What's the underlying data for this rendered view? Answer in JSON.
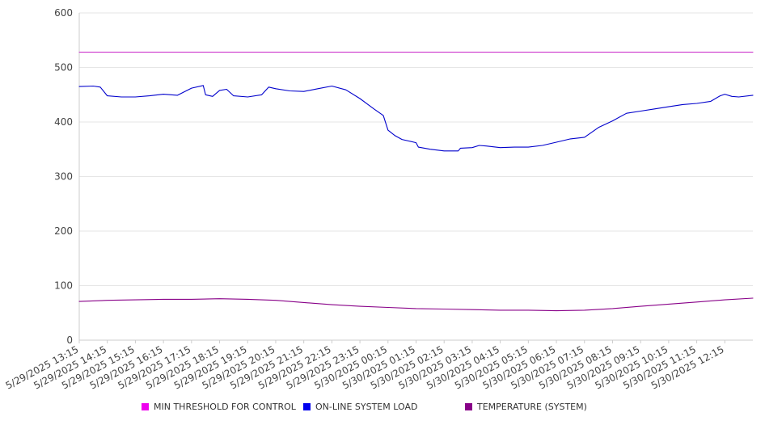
{
  "chart_data": {
    "type": "line",
    "title": "",
    "xlabel": "",
    "ylabel": "",
    "ylim": [
      0,
      600
    ],
    "yticks": [
      0,
      100,
      200,
      300,
      400,
      500,
      600
    ],
    "grid": "horizontal",
    "legend_position": "bottom",
    "x_tick_labels": [
      "5/29/2025 13:15",
      "5/29/2025 14:15",
      "5/29/2025 15:15",
      "5/29/2025 16:15",
      "5/29/2025 17:15",
      "5/29/2025 18:15",
      "5/29/2025 19:15",
      "5/29/2025 20:15",
      "5/29/2025 21:15",
      "5/29/2025 22:15",
      "5/29/2025 23:15",
      "5/30/2025 00:15",
      "5/30/2025 01:15",
      "5/30/2025 02:15",
      "5/30/2025 03:15",
      "5/30/2025 04:15",
      "5/30/2025 05:15",
      "5/30/2025 06:15",
      "5/30/2025 07:15",
      "5/30/2025 08:15",
      "5/30/2025 09:15",
      "5/30/2025 10:15",
      "5/30/2025 11:15",
      "5/30/2025 12:15"
    ],
    "x_start": "5/29/2025 13:15",
    "x_end": "5/30/2025 13:15",
    "series": [
      {
        "name": "MIN THRESHOLD FOR CONTROL",
        "color": "#cc33cc",
        "points": [
          [
            "5/29/2025 13:15",
            528
          ],
          [
            "5/30/2025 13:15",
            528
          ]
        ]
      },
      {
        "name": "ON-LINE SYSTEM LOAD",
        "color": "#0000cc",
        "points": [
          [
            "5/29/2025 13:15",
            465
          ],
          [
            "5/29/2025 13:45",
            466
          ],
          [
            "5/29/2025 14:00",
            464
          ],
          [
            "5/29/2025 14:15",
            448
          ],
          [
            "5/29/2025 14:45",
            446
          ],
          [
            "5/29/2025 15:15",
            446
          ],
          [
            "5/29/2025 15:45",
            448
          ],
          [
            "5/29/2025 16:15",
            451
          ],
          [
            "5/29/2025 16:45",
            449
          ],
          [
            "5/29/2025 17:15",
            462
          ],
          [
            "5/29/2025 17:40",
            467
          ],
          [
            "5/29/2025 17:45",
            450
          ],
          [
            "5/29/2025 18:00",
            447
          ],
          [
            "5/29/2025 18:15",
            458
          ],
          [
            "5/29/2025 18:30",
            460
          ],
          [
            "5/29/2025 18:45",
            448
          ],
          [
            "5/29/2025 19:15",
            446
          ],
          [
            "5/29/2025 19:45",
            450
          ],
          [
            "5/29/2025 20:00",
            464
          ],
          [
            "5/29/2025 20:15",
            461
          ],
          [
            "5/29/2025 20:45",
            457
          ],
          [
            "5/29/2025 21:15",
            456
          ],
          [
            "5/29/2025 21:45",
            461
          ],
          [
            "5/29/2025 22:15",
            466
          ],
          [
            "5/29/2025 22:45",
            459
          ],
          [
            "5/29/2025 23:15",
            443
          ],
          [
            "5/29/2025 23:45",
            424
          ],
          [
            "5/30/2025 00:05",
            412
          ],
          [
            "5/30/2025 00:15",
            385
          ],
          [
            "5/30/2025 00:30",
            375
          ],
          [
            "5/30/2025 00:45",
            368
          ],
          [
            "5/30/2025 01:15",
            362
          ],
          [
            "5/30/2025 01:20",
            354
          ],
          [
            "5/30/2025 01:45",
            350
          ],
          [
            "5/30/2025 02:15",
            347
          ],
          [
            "5/30/2025 02:45",
            347
          ],
          [
            "5/30/2025 02:50",
            352
          ],
          [
            "5/30/2025 03:15",
            353
          ],
          [
            "5/30/2025 03:30",
            357
          ],
          [
            "5/30/2025 03:45",
            356
          ],
          [
            "5/30/2025 04:15",
            353
          ],
          [
            "5/30/2025 04:45",
            354
          ],
          [
            "5/30/2025 05:15",
            354
          ],
          [
            "5/30/2025 05:45",
            357
          ],
          [
            "5/30/2025 06:15",
            363
          ],
          [
            "5/30/2025 06:45",
            369
          ],
          [
            "5/30/2025 07:15",
            372
          ],
          [
            "5/30/2025 07:45",
            390
          ],
          [
            "5/30/2025 08:15",
            402
          ],
          [
            "5/30/2025 08:45",
            416
          ],
          [
            "5/30/2025 09:15",
            420
          ],
          [
            "5/30/2025 09:45",
            424
          ],
          [
            "5/30/2025 10:15",
            428
          ],
          [
            "5/30/2025 10:45",
            432
          ],
          [
            "5/30/2025 11:15",
            434
          ],
          [
            "5/30/2025 11:45",
            438
          ],
          [
            "5/30/2025 12:05",
            448
          ],
          [
            "5/30/2025 12:15",
            451
          ],
          [
            "5/30/2025 12:30",
            447
          ],
          [
            "5/30/2025 12:45",
            446
          ],
          [
            "5/30/2025 13:15",
            449
          ]
        ]
      },
      {
        "name": "TEMPERATURE (SYSTEM)",
        "color": "#880088",
        "points": [
          [
            "5/29/2025 13:15",
            71
          ],
          [
            "5/29/2025 14:15",
            73
          ],
          [
            "5/29/2025 15:15",
            74
          ],
          [
            "5/29/2025 16:15",
            75
          ],
          [
            "5/29/2025 17:15",
            75
          ],
          [
            "5/29/2025 18:15",
            76
          ],
          [
            "5/29/2025 19:15",
            75
          ],
          [
            "5/29/2025 20:15",
            73
          ],
          [
            "5/29/2025 21:15",
            69
          ],
          [
            "5/29/2025 22:15",
            65
          ],
          [
            "5/29/2025 23:15",
            62
          ],
          [
            "5/30/2025 00:15",
            60
          ],
          [
            "5/30/2025 01:15",
            58
          ],
          [
            "5/30/2025 02:15",
            57
          ],
          [
            "5/30/2025 03:15",
            56
          ],
          [
            "5/30/2025 04:15",
            55
          ],
          [
            "5/30/2025 05:15",
            55
          ],
          [
            "5/30/2025 06:15",
            54
          ],
          [
            "5/30/2025 07:15",
            55
          ],
          [
            "5/30/2025 08:15",
            58
          ],
          [
            "5/30/2025 09:15",
            62
          ],
          [
            "5/30/2025 10:15",
            66
          ],
          [
            "5/30/2025 11:15",
            70
          ],
          [
            "5/30/2025 12:15",
            74
          ],
          [
            "5/30/2025 13:15",
            77
          ]
        ]
      }
    ]
  },
  "legend": {
    "items": [
      {
        "label": "MIN THRESHOLD FOR CONTROL",
        "color": "#ee00ee"
      },
      {
        "label": "ON-LINE SYSTEM LOAD",
        "color": "#0000ee"
      },
      {
        "label": "TEMPERATURE (SYSTEM)",
        "color": "#880088"
      }
    ]
  }
}
